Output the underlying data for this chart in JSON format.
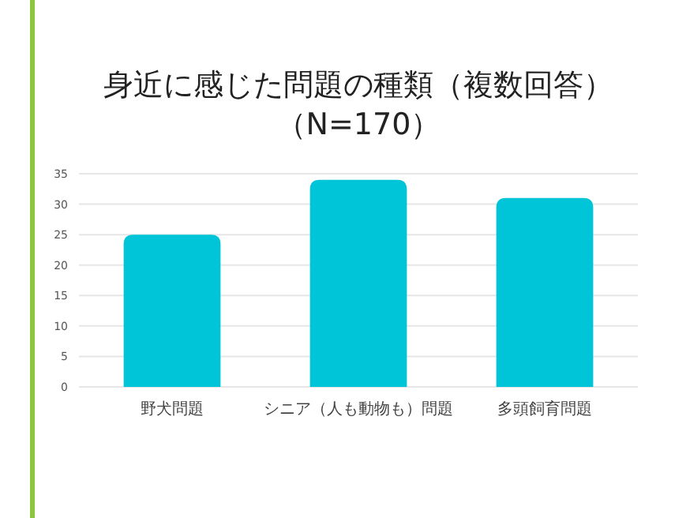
{
  "chart_data": {
    "type": "bar",
    "title": "身近に感じた問題の種類（複数回答）",
    "subtitle": "（N=170）",
    "categories": [
      "野犬問題",
      "シニア（人も動物も）問題",
      "多頭飼育問題"
    ],
    "values": [
      25,
      34,
      31
    ],
    "color": "#00c5d8",
    "ylim": [
      0,
      35
    ],
    "yticks": [
      0,
      5,
      10,
      15,
      20,
      25,
      30,
      35
    ],
    "grid": "y"
  }
}
